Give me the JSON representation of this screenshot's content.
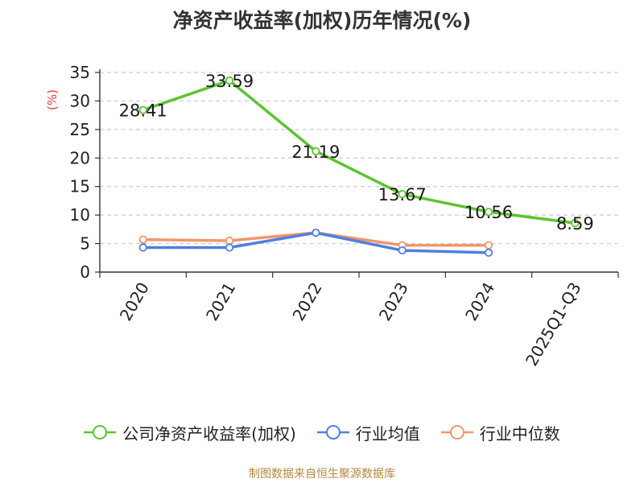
{
  "chart_data": {
    "type": "line",
    "title": "净资产收益率(加权)历年情况(%)",
    "ylabel": "(%)",
    "categories": [
      "2020",
      "2021",
      "2022",
      "2023",
      "2024",
      "2025Q1-Q3"
    ],
    "ylim": [
      0,
      35
    ],
    "yticks": [
      0,
      5,
      10,
      15,
      20,
      25,
      30,
      35
    ],
    "grid": true,
    "legend_position": "bottom",
    "series": [
      {
        "name": "公司净资产收益率(加权)",
        "color": "#5cc433",
        "values": [
          28.41,
          33.59,
          21.19,
          13.67,
          10.56,
          8.59
        ],
        "labels": [
          "28.41",
          "33.59",
          "21.19",
          "13.67",
          "10.56",
          "8.59"
        ]
      },
      {
        "name": "行业均值",
        "color": "#4f7fe0",
        "values": [
          4.3,
          4.3,
          6.9,
          3.8,
          3.4,
          null
        ]
      },
      {
        "name": "行业中位数",
        "color": "#f4956b",
        "values": [
          5.7,
          5.5,
          6.9,
          4.7,
          4.7,
          null
        ]
      }
    ]
  },
  "footer": {
    "source": "制图数据来自恒生聚源数据库"
  }
}
